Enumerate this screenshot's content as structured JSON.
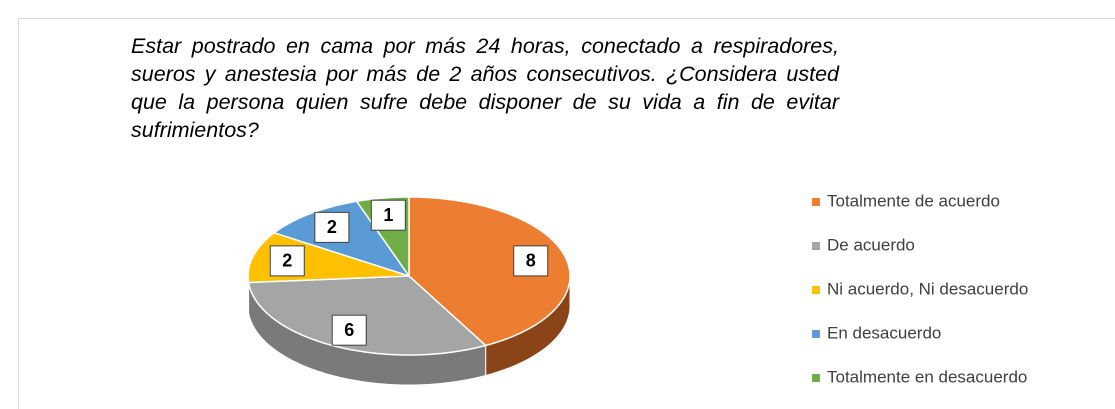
{
  "chart_data": {
    "type": "pie",
    "title": "Estar postrado en cama por más 24 horas, conectado a respiradores, sueros y anestesia por más de 2 años consecutivos. ¿Considera usted que la persona quien sufre debe disponer de su vida a fin de evitar sufrimientos?",
    "categories": [
      "Totalmente de acuerdo",
      "De acuerdo",
      "Ni acuerdo, Ni desacuerdo",
      "En desacuerdo",
      "Totalmente en desacuerdo"
    ],
    "values": [
      8,
      6,
      2,
      2,
      1
    ],
    "colors": [
      "#ED7D31",
      "#A5A5A5",
      "#FFC000",
      "#5B9BD5",
      "#70AD47"
    ],
    "side_colors": [
      "#8A4418",
      "#7A7A7A",
      "#B38700",
      "#3F6E99",
      "#4E7A32"
    ],
    "legend": "right"
  }
}
